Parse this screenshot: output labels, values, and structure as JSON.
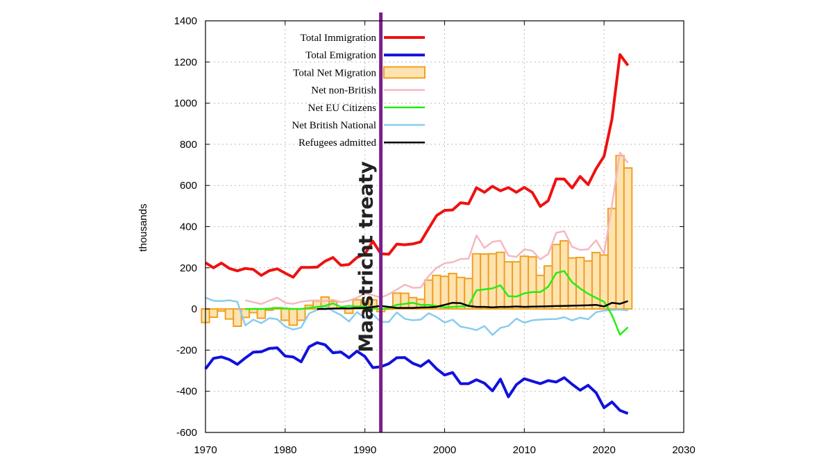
{
  "chart_data": {
    "type": "line",
    "title": "",
    "xlabel": "",
    "ylabel": "thousands",
    "xlim": [
      1970,
      2030
    ],
    "ylim": [
      -600,
      1400
    ],
    "xticks": [
      1970,
      1980,
      1990,
      2000,
      2010,
      2020,
      2030
    ],
    "yticks": [
      -600,
      -400,
      -200,
      0,
      200,
      400,
      600,
      800,
      1000,
      1200,
      1400
    ],
    "grid": true,
    "legend_position": "top-left",
    "annotation": {
      "text": "Maastricht treaty",
      "x": 1992,
      "color": "#7b1e8a"
    },
    "series": [
      {
        "name": "Total Immigration",
        "kind": "line",
        "color": "#ee1111",
        "x": [
          1970,
          1971,
          1972,
          1973,
          1974,
          1975,
          1976,
          1977,
          1978,
          1979,
          1980,
          1981,
          1982,
          1983,
          1984,
          1985,
          1986,
          1987,
          1988,
          1989,
          1990,
          1991,
          1992,
          1993,
          1994,
          1995,
          1996,
          1997,
          1998,
          1999,
          2000,
          2001,
          2002,
          2003,
          2004,
          2005,
          2006,
          2007,
          2008,
          2009,
          2010,
          2011,
          2012,
          2013,
          2014,
          2015,
          2016,
          2017,
          2018,
          2019,
          2020,
          2021,
          2022,
          2023
        ],
        "values": [
          225,
          200,
          223,
          197,
          185,
          197,
          192,
          163,
          186,
          195,
          174,
          154,
          202,
          202,
          203,
          232,
          250,
          212,
          216,
          250,
          267,
          329,
          268,
          266,
          315,
          312,
          316,
          326,
          391,
          454,
          479,
          481,
          516,
          511,
          589,
          567,
          596,
          574,
          590,
          567,
          591,
          566,
          498,
          526,
          632,
          631,
          588,
          644,
          604,
          681,
          742,
          923,
          1236,
          1183
        ]
      },
      {
        "name": "Total Emigration",
        "kind": "line",
        "color": "#1111dd",
        "x": [
          1970,
          1971,
          1972,
          1973,
          1974,
          1975,
          1976,
          1977,
          1978,
          1979,
          1980,
          1981,
          1982,
          1983,
          1984,
          1985,
          1986,
          1987,
          1988,
          1989,
          1990,
          1991,
          1992,
          1993,
          1994,
          1995,
          1996,
          1997,
          1998,
          1999,
          2000,
          2001,
          2002,
          2003,
          2004,
          2005,
          2006,
          2007,
          2008,
          2009,
          2010,
          2011,
          2012,
          2013,
          2014,
          2015,
          2016,
          2017,
          2018,
          2019,
          2020,
          2021,
          2022,
          2023
        ],
        "values": [
          -291,
          -240,
          -233,
          -246,
          -269,
          -238,
          -210,
          -208,
          -192,
          -189,
          -229,
          -233,
          -257,
          -184,
          -164,
          -174,
          -213,
          -209,
          -237,
          -205,
          -231,
          -285,
          -281,
          -266,
          -237,
          -236,
          -264,
          -279,
          -251,
          -291,
          -321,
          -309,
          -363,
          -363,
          -344,
          -361,
          -398,
          -341,
          -427,
          -368,
          -339,
          -351,
          -363,
          -348,
          -355,
          -334,
          -366,
          -395,
          -371,
          -407,
          -480,
          -452,
          -493,
          -508
        ]
      },
      {
        "name": "Total Net Migration",
        "kind": "bar",
        "color": "#f0a020",
        "fill": "#fde3b0",
        "x": [
          1970,
          1971,
          1972,
          1973,
          1974,
          1975,
          1976,
          1977,
          1978,
          1979,
          1980,
          1981,
          1982,
          1983,
          1984,
          1985,
          1986,
          1987,
          1988,
          1989,
          1990,
          1991,
          1992,
          1993,
          1994,
          1995,
          1996,
          1997,
          1998,
          1999,
          2000,
          2001,
          2002,
          2003,
          2004,
          2005,
          2006,
          2007,
          2008,
          2009,
          2010,
          2011,
          2012,
          2013,
          2014,
          2015,
          2016,
          2017,
          2018,
          2019,
          2020,
          2021,
          2022,
          2023
        ],
        "values": [
          -66,
          -40,
          -10,
          -49,
          -84,
          -41,
          -18,
          -45,
          -6,
          6,
          -55,
          -79,
          -55,
          18,
          39,
          58,
          37,
          3,
          -21,
          45,
          36,
          44,
          -13,
          0,
          77,
          76,
          55,
          47,
          140,
          163,
          158,
          172,
          153,
          148,
          268,
          267,
          268,
          275,
          229,
          229,
          256,
          253,
          163,
          209,
          313,
          331,
          248,
          250,
          233,
          274,
          262,
          488,
          745,
          685
        ]
      },
      {
        "name": "Net non-British",
        "kind": "line",
        "color": "#f5b8c0",
        "x": [
          1975,
          1976,
          1977,
          1978,
          1979,
          1980,
          1981,
          1982,
          1983,
          1984,
          1985,
          1986,
          1987,
          1988,
          1989,
          1990,
          1991,
          1992,
          1993,
          1994,
          1995,
          1996,
          1997,
          1998,
          1999,
          2000,
          2001,
          2002,
          2003,
          2004,
          2005,
          2006,
          2007,
          2008,
          2009,
          2010,
          2011,
          2012,
          2013,
          2014,
          2015,
          2016,
          2017,
          2018,
          2019,
          2020,
          2021,
          2022,
          2023
        ],
        "values": [
          42,
          33,
          24,
          40,
          55,
          30,
          25,
          35,
          40,
          42,
          38,
          45,
          33,
          40,
          55,
          75,
          67,
          55,
          72,
          94,
          118,
          103,
          104,
          160,
          200,
          222,
          227,
          243,
          244,
          358,
          296,
          326,
          332,
          259,
          253,
          290,
          283,
          241,
          267,
          370,
          378,
          302,
          287,
          290,
          334,
          268,
          505,
          760,
          710
        ]
      },
      {
        "name": "Net EU Citizens",
        "kind": "line",
        "color": "#22ee11",
        "x": [
          1975,
          1976,
          1977,
          1978,
          1979,
          1980,
          1981,
          1982,
          1983,
          1984,
          1985,
          1986,
          1987,
          1988,
          1989,
          1990,
          1991,
          1992,
          1993,
          1994,
          1995,
          1996,
          1997,
          1998,
          1999,
          2000,
          2001,
          2002,
          2003,
          2004,
          2005,
          2006,
          2007,
          2008,
          2009,
          2010,
          2011,
          2012,
          2013,
          2014,
          2015,
          2016,
          2017,
          2018,
          2019,
          2020,
          2021,
          2022,
          2023
        ],
        "values": [
          0,
          0,
          0,
          2,
          5,
          3,
          0,
          0,
          5,
          10,
          15,
          27,
          10,
          15,
          12,
          12,
          5,
          -2,
          5,
          20,
          25,
          30,
          20,
          20,
          15,
          8,
          10,
          12,
          15,
          90,
          95,
          100,
          115,
          62,
          60,
          76,
          82,
          82,
          108,
          175,
          184,
          130,
          100,
          74,
          54,
          35,
          -30,
          -125,
          -89
        ]
      },
      {
        "name": "Net British National",
        "kind": "line",
        "color": "#88ccee",
        "x": [
          1970,
          1971,
          1972,
          1973,
          1974,
          1975,
          1976,
          1977,
          1978,
          1979,
          1980,
          1981,
          1982,
          1983,
          1984,
          1985,
          1986,
          1987,
          1988,
          1989,
          1990,
          1991,
          1992,
          1993,
          1994,
          1995,
          1996,
          1997,
          1998,
          1999,
          2000,
          2001,
          2002,
          2003,
          2004,
          2005,
          2006,
          2007,
          2008,
          2009,
          2010,
          2011,
          2012,
          2013,
          2014,
          2015,
          2016,
          2017,
          2018,
          2019,
          2020,
          2021,
          2022,
          2023
        ],
        "values": [
          55,
          40,
          38,
          42,
          35,
          -80,
          -52,
          -69,
          -45,
          -50,
          -85,
          -100,
          -90,
          -22,
          -5,
          15,
          -10,
          -30,
          -61,
          -15,
          -44,
          -26,
          -63,
          -63,
          -17,
          -48,
          -55,
          -52,
          -21,
          -39,
          -66,
          -52,
          -86,
          -93,
          -103,
          -83,
          -126,
          -92,
          -82,
          -47,
          -67,
          -55,
          -52,
          -50,
          -49,
          -40,
          -56,
          -42,
          -50,
          -16,
          -8,
          -5,
          -3,
          -7
        ]
      },
      {
        "name": "Refugees admitted",
        "kind": "line",
        "color": "#000000",
        "x": [
          1984,
          1985,
          1986,
          1987,
          1988,
          1989,
          1990,
          1991,
          1992,
          1993,
          1994,
          1995,
          1996,
          1997,
          1998,
          1999,
          2000,
          2001,
          2002,
          2003,
          2004,
          2005,
          2006,
          2007,
          2008,
          2009,
          2010,
          2011,
          2012,
          2013,
          2014,
          2015,
          2016,
          2017,
          2018,
          2019,
          2020,
          2021,
          2022,
          2023
        ],
        "values": [
          0,
          0,
          2,
          3,
          3,
          4,
          5,
          10,
          15,
          10,
          5,
          5,
          5,
          7,
          8,
          10,
          20,
          30,
          28,
          15,
          10,
          10,
          8,
          10,
          10,
          12,
          10,
          11,
          12,
          13,
          14,
          15,
          16,
          17,
          18,
          20,
          12,
          30,
          25,
          38
        ]
      }
    ]
  }
}
